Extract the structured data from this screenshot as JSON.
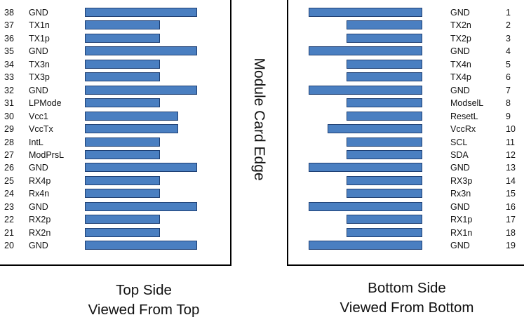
{
  "module_edge_label": "Module Card Edge",
  "top_side": {
    "caption_line1": "Top Side",
    "caption_line2": "Viewed From Top",
    "pins": [
      {
        "num": "38",
        "name": "GND",
        "pad": "long"
      },
      {
        "num": "37",
        "name": "TX1n",
        "pad": "short"
      },
      {
        "num": "36",
        "name": "TX1p",
        "pad": "short"
      },
      {
        "num": "35",
        "name": "GND",
        "pad": "long"
      },
      {
        "num": "34",
        "name": "TX3n",
        "pad": "short"
      },
      {
        "num": "33",
        "name": "TX3p",
        "pad": "short"
      },
      {
        "num": "32",
        "name": "GND",
        "pad": "long"
      },
      {
        "num": "31",
        "name": "LPMode",
        "pad": "short"
      },
      {
        "num": "30",
        "name": "Vcc1",
        "pad": "medium"
      },
      {
        "num": "29",
        "name": "VccTx",
        "pad": "medium"
      },
      {
        "num": "28",
        "name": "IntL",
        "pad": "short"
      },
      {
        "num": "27",
        "name": "ModPrsL",
        "pad": "short"
      },
      {
        "num": "26",
        "name": "GND",
        "pad": "long"
      },
      {
        "num": "25",
        "name": "RX4p",
        "pad": "short"
      },
      {
        "num": "24",
        "name": "Rx4n",
        "pad": "short"
      },
      {
        "num": "23",
        "name": "GND",
        "pad": "long"
      },
      {
        "num": "22",
        "name": "RX2p",
        "pad": "short"
      },
      {
        "num": "21",
        "name": "RX2n",
        "pad": "short"
      },
      {
        "num": "20",
        "name": "GND",
        "pad": "long"
      }
    ]
  },
  "bottom_side": {
    "caption_line1": "Bottom Side",
    "caption_line2": "Viewed From Bottom",
    "pins": [
      {
        "num": "1",
        "name": "GND",
        "pad": "long"
      },
      {
        "num": "2",
        "name": "TX2n",
        "pad": "short"
      },
      {
        "num": "3",
        "name": "TX2p",
        "pad": "short"
      },
      {
        "num": "4",
        "name": "GND",
        "pad": "long"
      },
      {
        "num": "5",
        "name": "TX4n",
        "pad": "short"
      },
      {
        "num": "6",
        "name": "TX4p",
        "pad": "short"
      },
      {
        "num": "7",
        "name": "GND",
        "pad": "long"
      },
      {
        "num": "8",
        "name": "ModselL",
        "pad": "short"
      },
      {
        "num": "9",
        "name": "ResetL",
        "pad": "short"
      },
      {
        "num": "10",
        "name": "VccRx",
        "pad": "medium"
      },
      {
        "num": "11",
        "name": "SCL",
        "pad": "short"
      },
      {
        "num": "12",
        "name": "SDA",
        "pad": "short"
      },
      {
        "num": "13",
        "name": "GND",
        "pad": "long"
      },
      {
        "num": "14",
        "name": "RX3p",
        "pad": "short"
      },
      {
        "num": "15",
        "name": "Rx3n",
        "pad": "short"
      },
      {
        "num": "16",
        "name": "GND",
        "pad": "long"
      },
      {
        "num": "17",
        "name": "RX1p",
        "pad": "short"
      },
      {
        "num": "18",
        "name": "RX1n",
        "pad": "short"
      },
      {
        "num": "19",
        "name": "GND",
        "pad": "long"
      }
    ]
  },
  "colors": {
    "pad_fill": "#4a7fc1",
    "pad_border": "#1e3f73"
  }
}
